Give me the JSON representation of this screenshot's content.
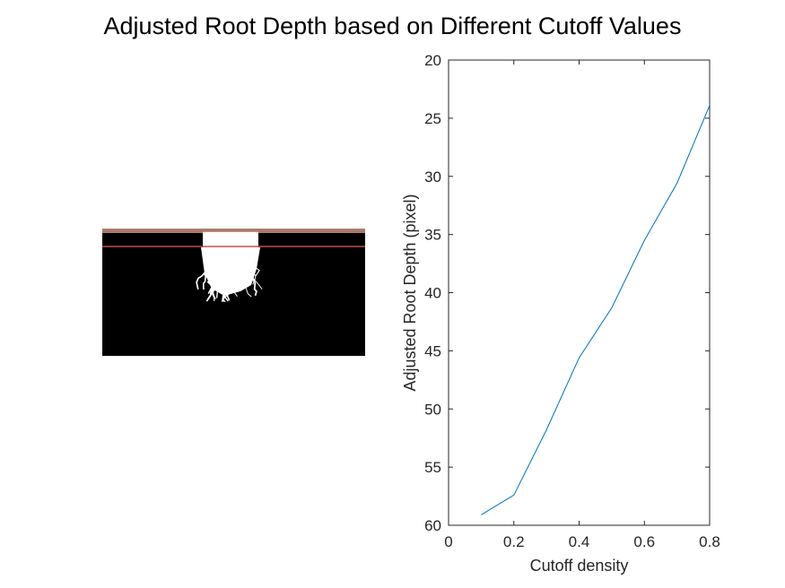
{
  "figure": {
    "title": "Adjusted Root Depth based on Different Cutoff Values"
  },
  "root_image": {
    "description_visible": false,
    "background_color": "#000000",
    "root_color": "#ffffff",
    "line_colors": [
      "#b07060",
      "#c0504d"
    ]
  },
  "chart_data": {
    "type": "line",
    "title": "",
    "xlabel": "Cutoff density",
    "ylabel": "Adjusted Root Depth (pixel)",
    "xlim": [
      0,
      0.8
    ],
    "ylim": [
      20,
      60
    ],
    "y_reversed": true,
    "xticks": [
      0,
      0.2,
      0.4,
      0.6,
      0.8
    ],
    "xtick_labels": [
      "0",
      "0.2",
      "0.4",
      "0.6",
      "0.8"
    ],
    "yticks": [
      20,
      25,
      30,
      35,
      40,
      45,
      50,
      55,
      60
    ],
    "ytick_labels": [
      "20",
      "25",
      "30",
      "35",
      "40",
      "45",
      "50",
      "55",
      "60"
    ],
    "grid": false,
    "series": [
      {
        "color": "#0072bd",
        "x": [
          0.1,
          0.2,
          0.3,
          0.4,
          0.5,
          0.6,
          0.7,
          0.8
        ],
        "y": [
          59.1,
          57.4,
          51.8,
          45.6,
          41.3,
          35.5,
          30.6,
          23.9
        ]
      }
    ]
  }
}
